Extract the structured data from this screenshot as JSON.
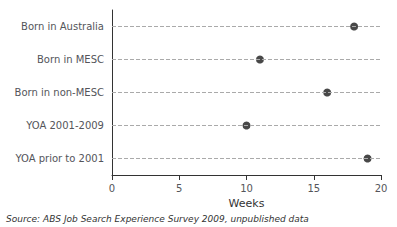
{
  "chart_data": {
    "type": "scatter",
    "categories": [
      "Born in Australia",
      "Born in MESC",
      "Born in non-MESC",
      "YOA 2001-2009",
      "YOA prior to 2001"
    ],
    "values": [
      18,
      11,
      16,
      10,
      19
    ],
    "color": "#1a1a1a",
    "xlim": [
      0,
      20
    ],
    "xticks": [
      0,
      5,
      10,
      15,
      20
    ],
    "xlabel": "Weeks",
    "grid": true,
    "annotations": [
      "Source: ABS Job Search Experience Survey 2009, unpublished data"
    ]
  }
}
